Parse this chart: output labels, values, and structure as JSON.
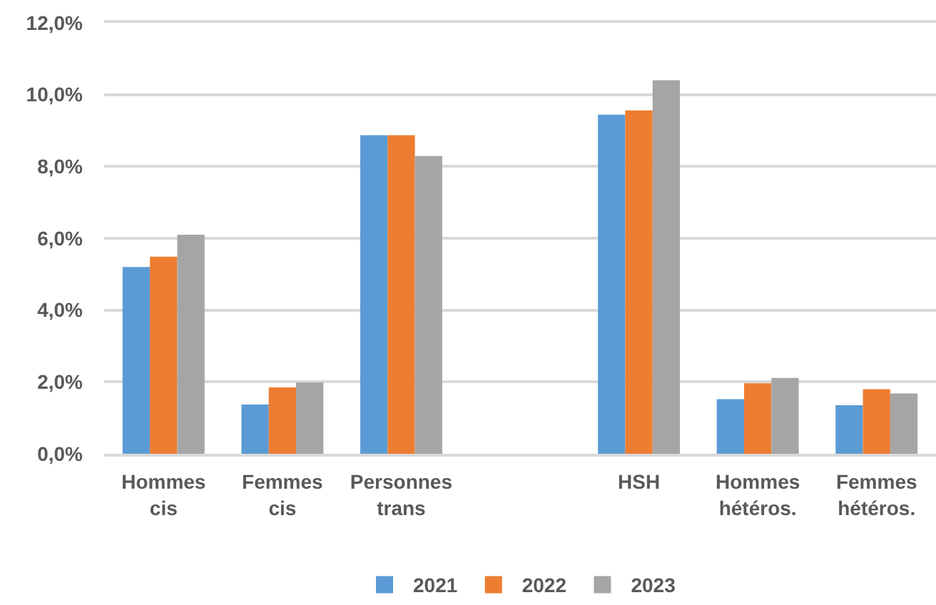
{
  "chart_data": {
    "type": "bar",
    "categories": [
      "Hommes cis",
      "Femmes cis",
      "Personnes trans",
      null,
      "HSH",
      "Hommes hétéros.",
      "Femmes hétéros."
    ],
    "series": [
      {
        "name": "2021",
        "color": "#5b9bd5",
        "values": [
          5.2,
          1.37,
          8.87,
          null,
          9.44,
          1.52,
          1.35
        ]
      },
      {
        "name": "2022",
        "color": "#ed7d31",
        "values": [
          5.49,
          1.85,
          8.87,
          null,
          9.56,
          1.96,
          1.8
        ]
      },
      {
        "name": "2023",
        "color": "#a5a5a5",
        "values": [
          6.1,
          1.98,
          8.29,
          null,
          10.4,
          2.11,
          1.68
        ]
      }
    ],
    "ylim": [
      0,
      12
    ],
    "yticks": [
      {
        "value": 0,
        "label": "0,0%"
      },
      {
        "value": 2,
        "label": "2,0%"
      },
      {
        "value": 4,
        "label": "4,0%"
      },
      {
        "value": 6,
        "label": "6,0%"
      },
      {
        "value": 8,
        "label": "8,0%"
      },
      {
        "value": 10,
        "label": "10,0%"
      },
      {
        "value": 12,
        "label": "12,0%"
      }
    ],
    "grid": "y",
    "legend": "bottom"
  }
}
